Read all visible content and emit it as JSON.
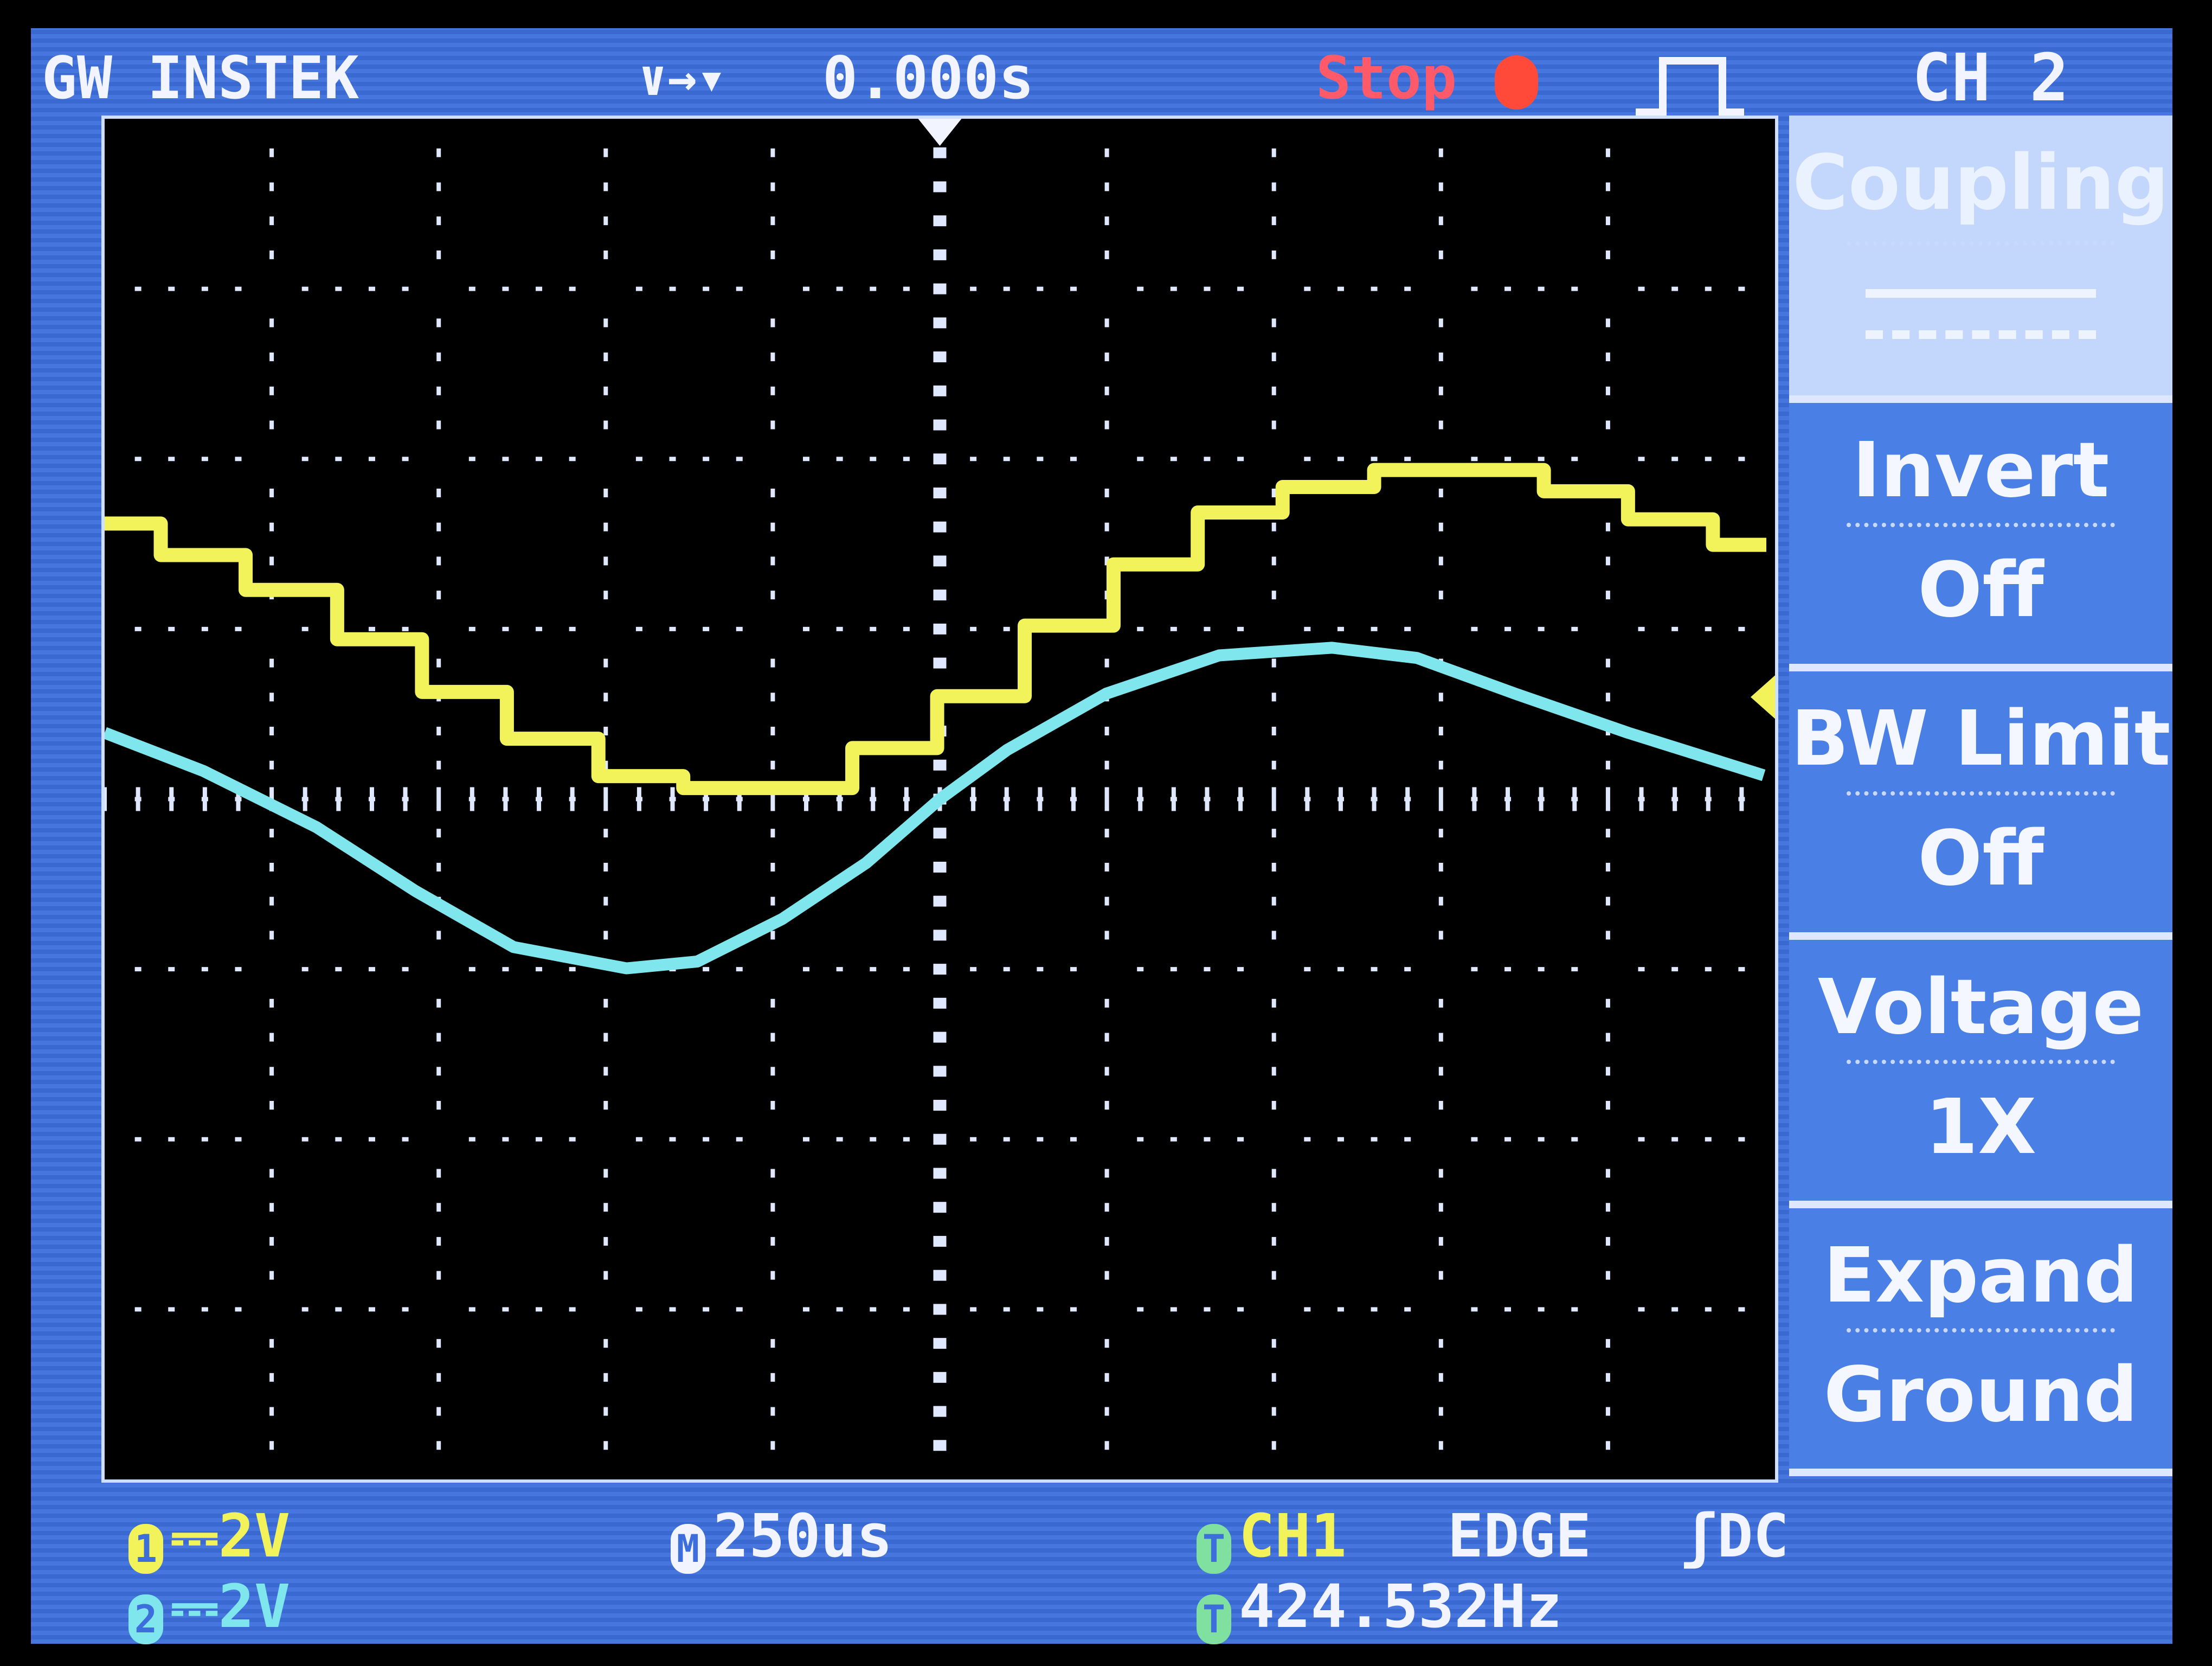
{
  "header": {
    "brand": "GW INSTEK",
    "trigger_position": "0.000s",
    "run_status": "Stop",
    "menu_title": "CH 2",
    "icons": [
      "trigger-position-icon",
      "stop-indicator-icon",
      "pulse-waveform-icon"
    ]
  },
  "menu": {
    "items": [
      {
        "title": "Coupling",
        "value": "DC",
        "selected": true
      },
      {
        "title": "Invert",
        "value": "Off"
      },
      {
        "title": "BW Limit",
        "value": "Off"
      },
      {
        "title": "Voltage",
        "value": "1X"
      },
      {
        "title": "Expand",
        "value": "Ground"
      }
    ]
  },
  "status": {
    "ch1": {
      "num": "1",
      "coupling": "⎓",
      "scale": "2V"
    },
    "ch2": {
      "num": "2",
      "coupling": "⎓",
      "scale": "2V"
    },
    "timebase": {
      "icon": "M",
      "value": "250us"
    },
    "trigger": {
      "icon": "T",
      "source": "CH1",
      "type": "EDGE",
      "slope": "ʃ",
      "coupling": "DC"
    },
    "frequency": {
      "icon": "T",
      "value": "424.532Hz"
    }
  },
  "colors": {
    "ch1": "#f2f25a",
    "ch2": "#7fe6ee",
    "screen": "#3c6fdc",
    "trigger": "#7fe0a0",
    "stop": "#ff5a5a"
  },
  "chart_data": {
    "type": "line",
    "xunit": "us",
    "yunit": "V",
    "xlim": [
      -1250,
      1250
    ],
    "ylim": [
      -8,
      8
    ],
    "divisions": {
      "x": 10,
      "y": 8
    },
    "grid": true,
    "trigger_level_V": 1.2,
    "series": [
      {
        "name": "CH1",
        "color": "#f2f25a",
        "style": "step",
        "t": [
          -1250,
          -1166,
          -1039,
          -902,
          -775,
          -648,
          -511,
          -384,
          -131,
          -4,
          127,
          260,
          386,
          513,
          650,
          904,
          1030,
          1157,
          1237
        ],
        "v": [
          3.24,
          2.87,
          2.46,
          1.88,
          1.26,
          0.71,
          0.27,
          0.13,
          0.6,
          1.21,
          2.04,
          2.76,
          3.37,
          3.67,
          3.87,
          3.62,
          3.29,
          2.99,
          2.99
        ]
      },
      {
        "name": "CH2",
        "color": "#7fe6ee",
        "style": "line",
        "t": [
          -1250,
          -1102,
          -933,
          -785,
          -638,
          -469,
          -363,
          -236,
          -110,
          0,
          101,
          249,
          418,
          587,
          714,
          861,
          1030,
          1233
        ],
        "v": [
          0.78,
          0.33,
          -0.33,
          -1.08,
          -1.74,
          -1.99,
          -1.91,
          -1.41,
          -0.75,
          0.0,
          0.58,
          1.24,
          1.69,
          1.78,
          1.66,
          1.24,
          0.78,
          0.28
        ]
      }
    ]
  }
}
